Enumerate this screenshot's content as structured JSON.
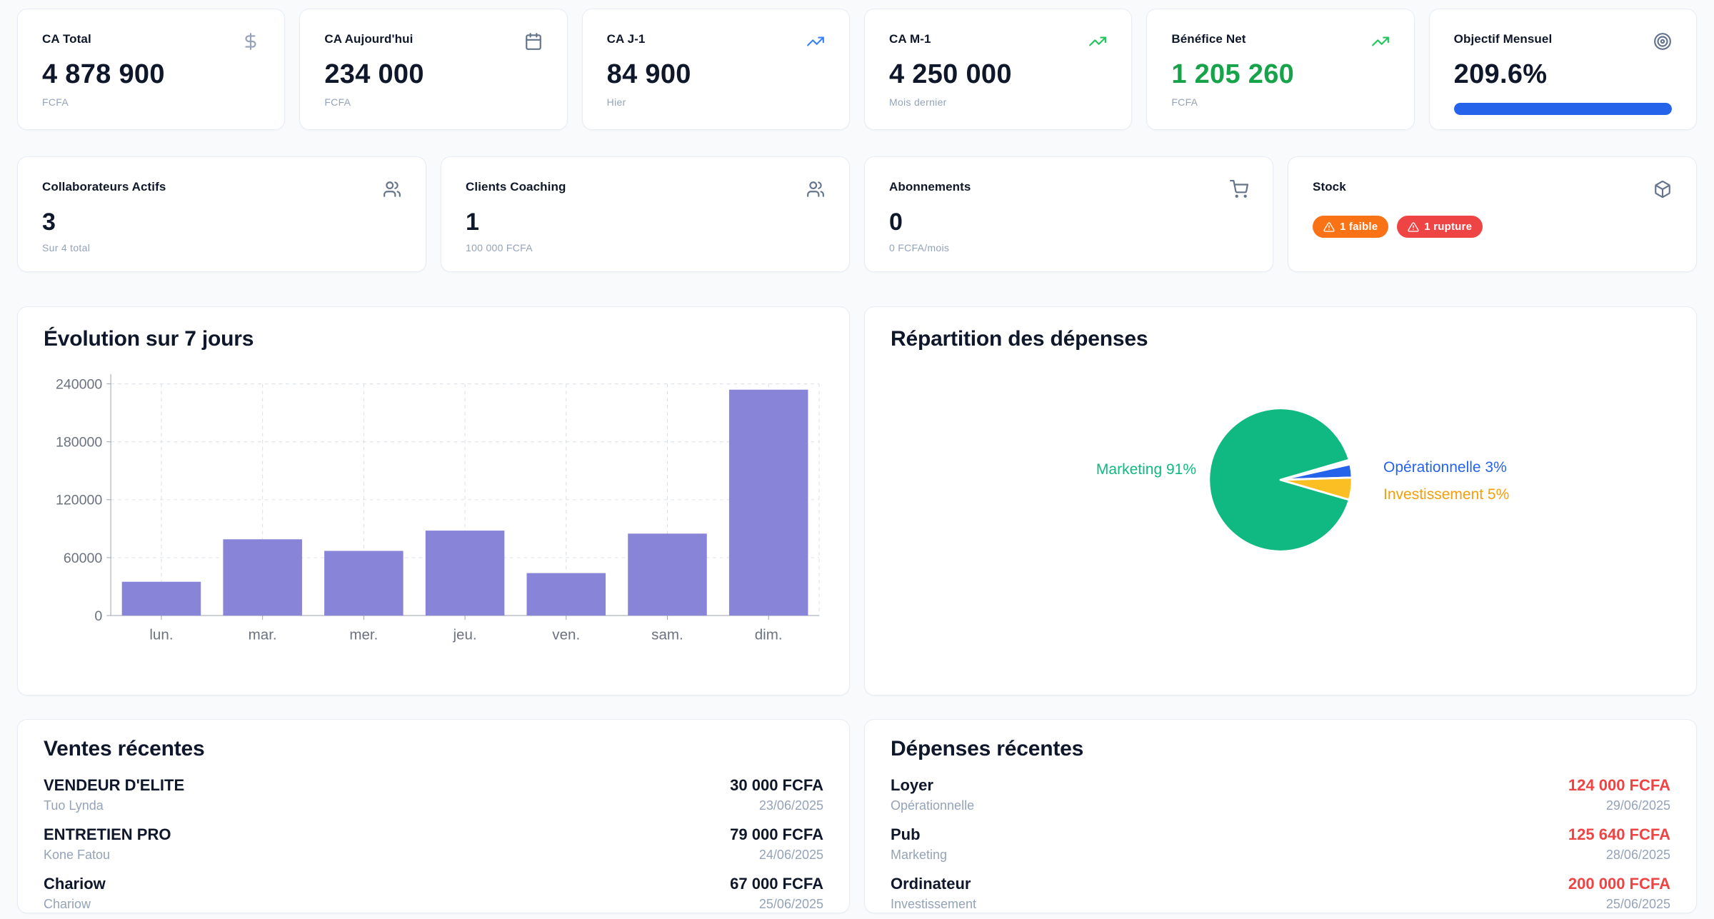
{
  "theme": {
    "page_bg": "#f8fafc",
    "card_bg": "#ffffff",
    "card_border": "#e8edf4",
    "text_dark": "#0f172a",
    "text_gray": "#6b7280",
    "text_light": "#94a3b8",
    "accent_blue": "#2563eb",
    "icon_blue": "#3b82f6",
    "icon_green": "#22c55e",
    "icon_gray": "#94a3b8",
    "icon_slate": "#64748b",
    "green": "#16a34a",
    "red": "#ef4444",
    "badge_orange": "#f97316",
    "badge_red": "#ef4444",
    "axis_gray": "#9ca3af",
    "grid_gray": "#d9dfe8",
    "track_gray": "#e8edf4"
  },
  "kpis_row1": [
    {
      "title": "CA Total",
      "icon": "dollar-sign",
      "value": "4 878 900",
      "sub": "FCFA"
    },
    {
      "title": "CA Aujourd'hui",
      "icon": "calendar",
      "value": "234 000",
      "sub": "FCFA"
    },
    {
      "title": "CA J-1",
      "icon": "trending-up",
      "value": "84 900",
      "sub": "Hier"
    },
    {
      "title": "CA M-1",
      "icon": "trending-up",
      "value": "4 250 000",
      "sub": "Mois dernier"
    },
    {
      "title": "Bénéfice Net",
      "icon": "trending-up",
      "value": "1 205 260",
      "sub": "FCFA"
    },
    {
      "title": "Objectif Mensuel",
      "icon": "target",
      "value": "209.6%",
      "progress_fill_pct": 100
    }
  ],
  "kpis_row2": [
    {
      "title": "Collaborateurs Actifs",
      "icon": "users",
      "value": "3",
      "sub": "Sur 4 total"
    },
    {
      "title": "Clients Coaching",
      "icon": "users",
      "value": "1",
      "sub": "100 000 FCFA"
    },
    {
      "title": "Abonnements",
      "icon": "shopping-cart",
      "value": "0",
      "sub": "0 FCFA/mois"
    },
    {
      "title": "Stock",
      "icon": "package",
      "badges": [
        {
          "label": "1 faible"
        },
        {
          "label": "1 rupture"
        }
      ]
    }
  ],
  "chart_data": [
    {
      "type": "bar",
      "title": "Évolution sur 7 jours",
      "categories": [
        "lun.",
        "mar.",
        "mer.",
        "jeu.",
        "ven.",
        "sam.",
        "dim."
      ],
      "values": [
        35000,
        79000,
        67000,
        88000,
        44000,
        84900,
        234000
      ],
      "xlabel": "",
      "ylabel": "",
      "ylim": [
        0,
        240000
      ],
      "yticks": [
        0,
        60000,
        120000,
        180000,
        240000
      ],
      "bar_color": "#8884d8",
      "grid": "dashed",
      "legend": "none"
    },
    {
      "type": "pie",
      "title": "Répartition des dépenses",
      "slices": [
        {
          "label": "Marketing",
          "pct": 91,
          "color": "#10b981",
          "label_text": "Marketing 91%",
          "label_color": "#10b981",
          "label_side": "left"
        },
        {
          "label": "Opérationnelle",
          "pct": 3,
          "color": "#2563eb",
          "label_text": "Opérationnelle 3%",
          "label_color": "#2563eb",
          "label_side": "right"
        },
        {
          "label": "Investissement",
          "pct": 5,
          "color": "#fbbf24",
          "label_text": "Investissement 5%",
          "label_color": "#f59e0b",
          "label_side": "right"
        }
      ],
      "legend": "none"
    }
  ],
  "sections": {
    "sales_title": "Ventes récentes",
    "expenses_title": "Dépenses récentes"
  },
  "sales": [
    {
      "name": "VENDEUR D'ELITE",
      "detail": "Tuo Lynda",
      "amount": "30 000 FCFA",
      "date": "23/06/2025"
    },
    {
      "name": "ENTRETIEN PRO",
      "detail": "Kone Fatou",
      "amount": "79 000 FCFA",
      "date": "24/06/2025"
    },
    {
      "name": "Chariow",
      "detail": "Chariow",
      "amount": "67 000 FCFA",
      "date": "25/06/2025"
    }
  ],
  "expenses": [
    {
      "name": "Loyer",
      "detail": "Opérationnelle",
      "amount": "124 000 FCFA",
      "date": "29/06/2025"
    },
    {
      "name": "Pub",
      "detail": "Marketing",
      "amount": "125 640 FCFA",
      "date": "28/06/2025"
    },
    {
      "name": "Ordinateur",
      "detail": "Investissement",
      "amount": "200 000 FCFA",
      "date": "25/06/2025"
    }
  ]
}
